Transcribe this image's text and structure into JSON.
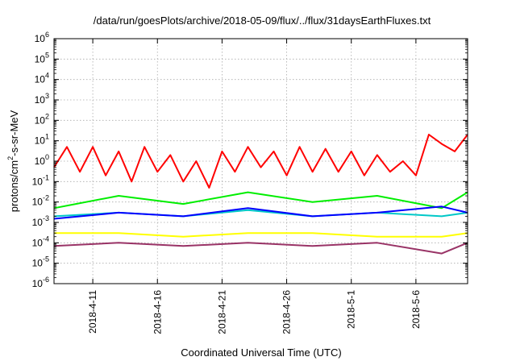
{
  "chart_data": {
    "type": "line",
    "title": "/data/run/goesPlots/archive/2018-05-09/flux/../flux/31daysEarthFluxes.txt",
    "xlabel": "Coordinated Universal Time (UTC)",
    "ylabel": {
      "prefix": "protons/cm",
      "exp": "2",
      "suffix": "-s-sr-MeV"
    },
    "yscale": "log",
    "ylim": [
      1e-06,
      1000000.0
    ],
    "y_ticks": [
      {
        "base": "10",
        "exp": "6"
      },
      {
        "base": "10",
        "exp": "5"
      },
      {
        "base": "10",
        "exp": "4"
      },
      {
        "base": "10",
        "exp": "3"
      },
      {
        "base": "10",
        "exp": "2"
      },
      {
        "base": "10",
        "exp": "1"
      },
      {
        "base": "10",
        "exp": "0"
      },
      {
        "base": "10",
        "exp": "-1"
      },
      {
        "base": "10",
        "exp": "-2"
      },
      {
        "base": "10",
        "exp": "-3"
      },
      {
        "base": "10",
        "exp": "-4"
      },
      {
        "base": "10",
        "exp": "-5"
      },
      {
        "base": "10",
        "exp": "-6"
      }
    ],
    "xlim": [
      "2018-04-08",
      "2018-05-10"
    ],
    "x_ticks": [
      "2018-4-11",
      "2018-4-16",
      "2018-4-21",
      "2018-4-26",
      "2018-5-1",
      "2018-5-6"
    ],
    "grid": true,
    "series": [
      {
        "color": "#ff0000",
        "x": [
          "2018-04-08",
          "2018-04-09",
          "2018-04-10",
          "2018-04-11",
          "2018-04-12",
          "2018-04-13",
          "2018-04-14",
          "2018-04-15",
          "2018-04-16",
          "2018-04-17",
          "2018-04-18",
          "2018-04-19",
          "2018-04-20",
          "2018-04-21",
          "2018-04-22",
          "2018-04-23",
          "2018-04-24",
          "2018-04-25",
          "2018-04-26",
          "2018-04-27",
          "2018-04-28",
          "2018-04-29",
          "2018-04-30",
          "2018-05-01",
          "2018-05-02",
          "2018-05-03",
          "2018-05-04",
          "2018-05-05",
          "2018-05-06",
          "2018-05-07",
          "2018-05-08",
          "2018-05-09",
          "2018-05-10"
        ],
        "y": [
          0.5,
          5,
          0.3,
          5,
          0.2,
          3,
          0.1,
          5,
          0.3,
          2,
          0.1,
          1,
          0.05,
          3,
          0.3,
          5,
          0.5,
          3,
          0.2,
          5,
          0.3,
          4,
          0.3,
          3,
          0.2,
          2,
          0.3,
          1,
          0.2,
          20,
          7,
          3,
          20
        ]
      },
      {
        "color": "#00ee00",
        "x": [
          "2018-04-08",
          "2018-04-13",
          "2018-04-18",
          "2018-04-23",
          "2018-04-28",
          "2018-05-03",
          "2018-05-08",
          "2018-05-10"
        ],
        "y": [
          0.005,
          0.02,
          0.008,
          0.03,
          0.01,
          0.02,
          0.005,
          0.03
        ]
      },
      {
        "color": "#00c8c8",
        "x": [
          "2018-04-08",
          "2018-04-13",
          "2018-04-18",
          "2018-04-23",
          "2018-04-28",
          "2018-05-03",
          "2018-05-08",
          "2018-05-10"
        ],
        "y": [
          0.002,
          0.003,
          0.002,
          0.004,
          0.002,
          0.003,
          0.002,
          0.003
        ]
      },
      {
        "color": "#0000ff",
        "x": [
          "2018-04-08",
          "2018-04-13",
          "2018-04-18",
          "2018-04-23",
          "2018-04-28",
          "2018-05-03",
          "2018-05-08",
          "2018-05-10"
        ],
        "y": [
          0.0015,
          0.003,
          0.002,
          0.005,
          0.002,
          0.003,
          0.006,
          0.003
        ]
      },
      {
        "color": "#ffff00",
        "x": [
          "2018-04-08",
          "2018-04-13",
          "2018-04-18",
          "2018-04-23",
          "2018-04-28",
          "2018-05-03",
          "2018-05-08",
          "2018-05-10"
        ],
        "y": [
          0.0003,
          0.0003,
          0.0002,
          0.0003,
          0.0003,
          0.0002,
          0.0002,
          0.0003
        ]
      },
      {
        "color": "#993366",
        "x": [
          "2018-04-08",
          "2018-04-13",
          "2018-04-18",
          "2018-04-23",
          "2018-04-28",
          "2018-05-03",
          "2018-05-08",
          "2018-05-10"
        ],
        "y": [
          7e-05,
          0.0001,
          7e-05,
          0.0001,
          7e-05,
          0.0001,
          3e-05,
          0.0001
        ]
      }
    ]
  }
}
